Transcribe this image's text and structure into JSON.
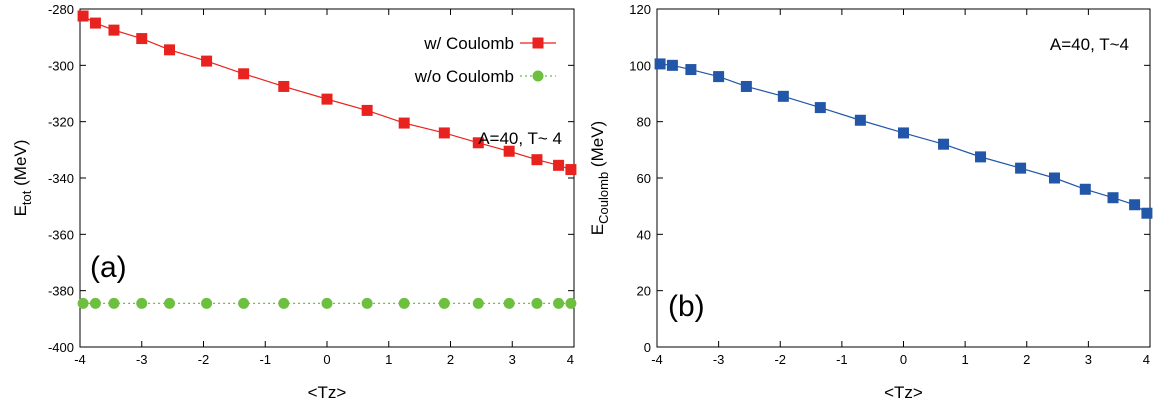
{
  "chart_data": [
    {
      "type": "line",
      "panel_label": "(a)",
      "annotation": "A=40, T~ 4",
      "xlabel": "<Tz>",
      "ylabel": {
        "main": "E",
        "sub": "tot",
        "rest": " (MeV)"
      },
      "xlim": [
        -4,
        4
      ],
      "ylim": [
        -400,
        -280
      ],
      "xticks": [
        -4,
        -3,
        -2,
        -1,
        0,
        1,
        2,
        3,
        4
      ],
      "yticks": [
        -400,
        -380,
        -360,
        -340,
        -320,
        -300,
        -280
      ],
      "legend_position": "top-right",
      "grid": false,
      "series": [
        {
          "name": "w/ Coulomb",
          "color": "#e8231f",
          "marker": "square",
          "line": "solid",
          "x": [
            -3.95,
            -3.75,
            -3.45,
            -3.0,
            -2.55,
            -1.95,
            -1.35,
            -0.7,
            0.0,
            0.65,
            1.25,
            1.9,
            2.45,
            2.95,
            3.4,
            3.75,
            3.95
          ],
          "y": [
            -282.5,
            -285,
            -287.5,
            -290.5,
            -294.5,
            -298.5,
            -303,
            -307.5,
            -312,
            -316,
            -320.5,
            -324,
            -327.5,
            -330.5,
            -333.5,
            -335.5,
            -337
          ]
        },
        {
          "name": "w/o Coulomb",
          "color": "#6cbf3f",
          "marker": "circle",
          "line": "dotted",
          "x": [
            -3.95,
            -3.75,
            -3.45,
            -3.0,
            -2.55,
            -1.95,
            -1.35,
            -0.7,
            0.0,
            0.65,
            1.25,
            1.9,
            2.45,
            2.95,
            3.4,
            3.75,
            3.95
          ],
          "y": [
            -384.5,
            -384.5,
            -384.5,
            -384.5,
            -384.5,
            -384.5,
            -384.5,
            -384.5,
            -384.5,
            -384.5,
            -384.5,
            -384.5,
            -384.5,
            -384.5,
            -384.5,
            -384.5,
            -384.5
          ]
        }
      ]
    },
    {
      "type": "line",
      "panel_label": "(b)",
      "annotation": "A=40, T~4",
      "xlabel": "<Tz>",
      "ylabel": {
        "main": "E",
        "sub": "Coulomb",
        "rest": " (MeV)"
      },
      "xlim": [
        -4,
        4
      ],
      "ylim": [
        0,
        120
      ],
      "xticks": [
        -4,
        -3,
        -2,
        -1,
        0,
        1,
        2,
        3,
        4
      ],
      "yticks": [
        0,
        20,
        40,
        60,
        80,
        100,
        120
      ],
      "grid": false,
      "series": [
        {
          "color": "#2156a8",
          "marker": "square",
          "line": "solid",
          "x": [
            -3.95,
            -3.75,
            -3.45,
            -3.0,
            -2.55,
            -1.95,
            -1.35,
            -0.7,
            0.0,
            0.65,
            1.25,
            1.9,
            2.45,
            2.95,
            3.4,
            3.75,
            3.95
          ],
          "y": [
            100.5,
            100,
            98.5,
            96,
            92.5,
            89,
            85,
            80.5,
            76,
            72,
            67.5,
            63.5,
            60,
            56,
            53,
            50.5,
            47.5
          ]
        }
      ]
    }
  ]
}
